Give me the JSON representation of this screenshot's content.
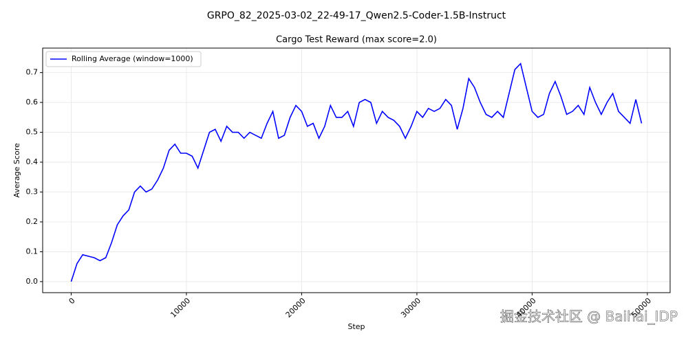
{
  "chart_data": {
    "type": "line",
    "suptitle": "GRPO_82_2025-03-02_22-49-17_Qwen2.5-Coder-1.5B-Instruct",
    "title": "Cargo Test Reward (max score=2.0)",
    "xlabel": "Step",
    "ylabel": "Average Score",
    "watermark": "掘金技术社区 @ Baihai_IDP",
    "x": [
      0,
      500,
      1000,
      1500,
      2000,
      2500,
      3000,
      3500,
      4000,
      4500,
      5000,
      5500,
      6000,
      6500,
      7000,
      7500,
      8000,
      8500,
      9000,
      9500,
      10000,
      10500,
      11000,
      11500,
      12000,
      12500,
      13000,
      13500,
      14000,
      14500,
      15000,
      15500,
      16000,
      16500,
      17000,
      17500,
      18000,
      18500,
      19000,
      19500,
      20000,
      20500,
      21000,
      21500,
      22000,
      22500,
      23000,
      23500,
      24000,
      24500,
      25000,
      25500,
      26000,
      26500,
      27000,
      27500,
      28000,
      28500,
      29000,
      29500,
      30000,
      30500,
      31000,
      31500,
      32000,
      32500,
      33000,
      33500,
      34000,
      34500,
      35000,
      35500,
      36000,
      36500,
      37000,
      37500,
      38000,
      38500,
      39000,
      39500,
      40000,
      40500,
      41000,
      41500,
      42000,
      42500,
      43000,
      43500,
      44000,
      44500,
      45000,
      45500,
      46000,
      46500,
      47000,
      47500,
      48000,
      48500,
      49000,
      49500
    ],
    "series": [
      {
        "name": "Rolling Average (window=1000)",
        "color": "#0000ff",
        "values": [
          0.0,
          0.06,
          0.09,
          0.085,
          0.08,
          0.07,
          0.08,
          0.13,
          0.19,
          0.22,
          0.24,
          0.3,
          0.32,
          0.3,
          0.31,
          0.34,
          0.38,
          0.44,
          0.46,
          0.43,
          0.43,
          0.42,
          0.38,
          0.44,
          0.5,
          0.51,
          0.47,
          0.52,
          0.5,
          0.5,
          0.48,
          0.5,
          0.49,
          0.48,
          0.53,
          0.57,
          0.48,
          0.49,
          0.55,
          0.59,
          0.57,
          0.52,
          0.53,
          0.48,
          0.52,
          0.59,
          0.55,
          0.55,
          0.57,
          0.52,
          0.6,
          0.61,
          0.6,
          0.53,
          0.57,
          0.55,
          0.54,
          0.52,
          0.48,
          0.52,
          0.57,
          0.55,
          0.58,
          0.57,
          0.58,
          0.61,
          0.59,
          0.51,
          0.58,
          0.68,
          0.65,
          0.6,
          0.56,
          0.55,
          0.57,
          0.55,
          0.63,
          0.71,
          0.73,
          0.65,
          0.57,
          0.55,
          0.56,
          0.63,
          0.67,
          0.62,
          0.56,
          0.57,
          0.59,
          0.56,
          0.65,
          0.6,
          0.56,
          0.6,
          0.63,
          0.57,
          0.55,
          0.53,
          0.61,
          0.53
        ]
      }
    ],
    "xlim": [
      -2475,
      51975
    ],
    "ylim": [
      -0.037,
      0.782
    ],
    "xticks": [
      0,
      10000,
      20000,
      30000,
      40000,
      50000
    ],
    "yticks": [
      {
        "value": 0,
        "label": "0.0"
      },
      0.1,
      0.2,
      0.3,
      0.4,
      0.5,
      0.6,
      0.7
    ],
    "grid": true,
    "legend": "upper left"
  }
}
